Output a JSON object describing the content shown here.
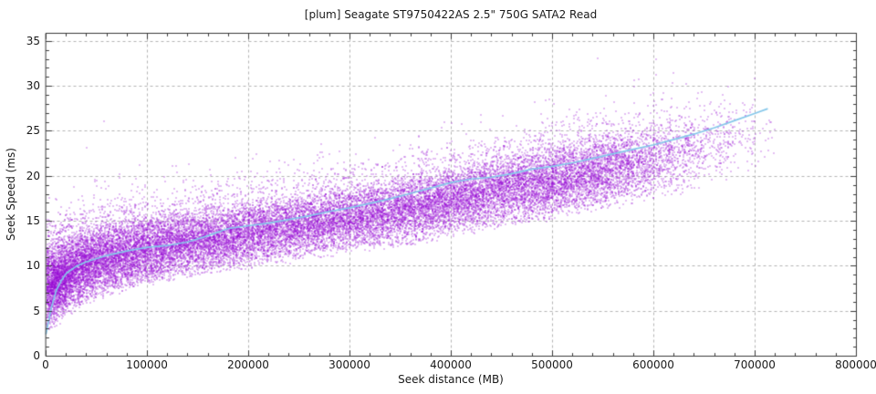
{
  "chart_data": {
    "type": "scatter",
    "title": "[plum] Seagate ST9750422AS 2.5\" 750G SATA2 Read",
    "xlabel": "Seek distance (MB)",
    "ylabel": "Seek Speed (ms)",
    "xlim": [
      0,
      800000
    ],
    "ylim": [
      0,
      35.9
    ],
    "grid": true,
    "legend": "none",
    "x_tick_values": [
      0,
      100000,
      200000,
      300000,
      400000,
      500000,
      600000,
      700000,
      800000
    ],
    "x_tick_labels": [
      "0",
      "100000",
      "200000",
      "300000",
      "400000",
      "500000",
      "600000",
      "700000",
      "800000"
    ],
    "x_minor_step": 20000,
    "y_tick_values": [
      0,
      5,
      10,
      15,
      20,
      25,
      30,
      35
    ],
    "y_tick_labels": [
      "0",
      "5",
      "10",
      "15",
      "20",
      "25",
      "30",
      "35"
    ],
    "y_minor_step": 1,
    "colors": {
      "points": "#9406d4",
      "trend": "#85c7ea",
      "grid": "#b4b4b4",
      "axis": "#3a3a3a",
      "text": "#1a1a1a",
      "background": "#ffffff"
    },
    "series": [
      {
        "name": "seek-samples",
        "style": "dots",
        "color": "#9406d4",
        "n_points": 26000,
        "seed": 20240607,
        "band": {
          "x": [
            0,
            20000,
            40000,
            60000,
            80000,
            100000,
            120000,
            140000,
            160000,
            180000,
            200000,
            220000,
            240000,
            260000,
            280000,
            300000,
            320000,
            340000,
            360000,
            380000,
            400000,
            420000,
            440000,
            460000,
            480000,
            500000,
            520000,
            540000,
            560000,
            580000,
            600000,
            620000,
            640000,
            660000,
            680000,
            700000,
            720000
          ],
          "y_min": [
            2.3,
            4.3,
            5.7,
            6.5,
            7.2,
            7.7,
            8.2,
            8.6,
            9.0,
            9.3,
            9.6,
            9.9,
            10.2,
            10.6,
            10.9,
            11.2,
            11.6,
            11.9,
            12.3,
            12.6,
            13.2,
            13.6,
            14.0,
            14.4,
            14.7,
            15.0,
            15.4,
            15.8,
            16.2,
            16.7,
            17.2,
            17.7,
            18.2,
            18.8,
            19.3,
            19.8,
            20.3
          ],
          "y_max": [
            13.0,
            14.0,
            15.0,
            15.5,
            15.9,
            16.3,
            16.6,
            16.9,
            17.2,
            17.5,
            17.9,
            18.2,
            18.6,
            19.0,
            19.3,
            19.7,
            20.1,
            20.5,
            20.9,
            21.3,
            21.7,
            22.2,
            22.7,
            23.2,
            23.7,
            24.2,
            24.7,
            25.2,
            25.7,
            26.2,
            26.8,
            27.4,
            28.0,
            28.6,
            29.1,
            29.6,
            30.0
          ],
          "density": [
            2.6,
            2.0,
            1.6,
            1.45,
            1.35,
            1.3,
            1.25,
            1.2,
            1.15,
            1.1,
            1.05,
            1.0,
            1.0,
            1.0,
            1.0,
            1.0,
            1.0,
            1.0,
            1.0,
            1.0,
            1.0,
            1.0,
            1.0,
            1.0,
            1.0,
            1.0,
            0.95,
            0.85,
            0.7,
            0.55,
            0.42,
            0.3,
            0.2,
            0.13,
            0.07,
            0.025
          ]
        },
        "stray_fraction": 0.035,
        "stray_scale": 1.1,
        "outliers": [
          [
            40000,
            23.2
          ],
          [
            57000,
            26.2
          ],
          [
            92000,
            21.3
          ],
          [
            544000,
            33.2
          ],
          [
            602000,
            33.1
          ],
          [
            707000,
            25.4
          ]
        ]
      },
      {
        "name": "smoothed-average",
        "style": "line",
        "color": "#85c7ea",
        "width": 1.7,
        "points": [
          [
            0,
            2.5
          ],
          [
            5000,
            5.3
          ],
          [
            10000,
            7.3
          ],
          [
            15000,
            8.4
          ],
          [
            20000,
            9.2
          ],
          [
            30000,
            10.0
          ],
          [
            40000,
            10.5
          ],
          [
            60000,
            11.2
          ],
          [
            80000,
            11.7
          ],
          [
            100000,
            12.1
          ],
          [
            120000,
            12.3
          ],
          [
            140000,
            12.7
          ],
          [
            160000,
            13.4
          ],
          [
            180000,
            14.2
          ],
          [
            200000,
            14.5
          ],
          [
            220000,
            14.8
          ],
          [
            240000,
            15.2
          ],
          [
            260000,
            15.6
          ],
          [
            280000,
            16.1
          ],
          [
            300000,
            16.5
          ],
          [
            320000,
            17.0
          ],
          [
            340000,
            17.5
          ],
          [
            360000,
            18.1
          ],
          [
            380000,
            18.7
          ],
          [
            400000,
            19.3
          ],
          [
            420000,
            19.7
          ],
          [
            440000,
            19.9
          ],
          [
            460000,
            20.3
          ],
          [
            480000,
            20.8
          ],
          [
            500000,
            21.1
          ],
          [
            520000,
            21.5
          ],
          [
            540000,
            22.0
          ],
          [
            560000,
            22.5
          ],
          [
            580000,
            23.0
          ],
          [
            600000,
            23.5
          ],
          [
            620000,
            24.1
          ],
          [
            640000,
            24.7
          ],
          [
            660000,
            25.4
          ],
          [
            680000,
            26.2
          ],
          [
            700000,
            27.0
          ],
          [
            712000,
            27.5
          ]
        ]
      }
    ]
  }
}
